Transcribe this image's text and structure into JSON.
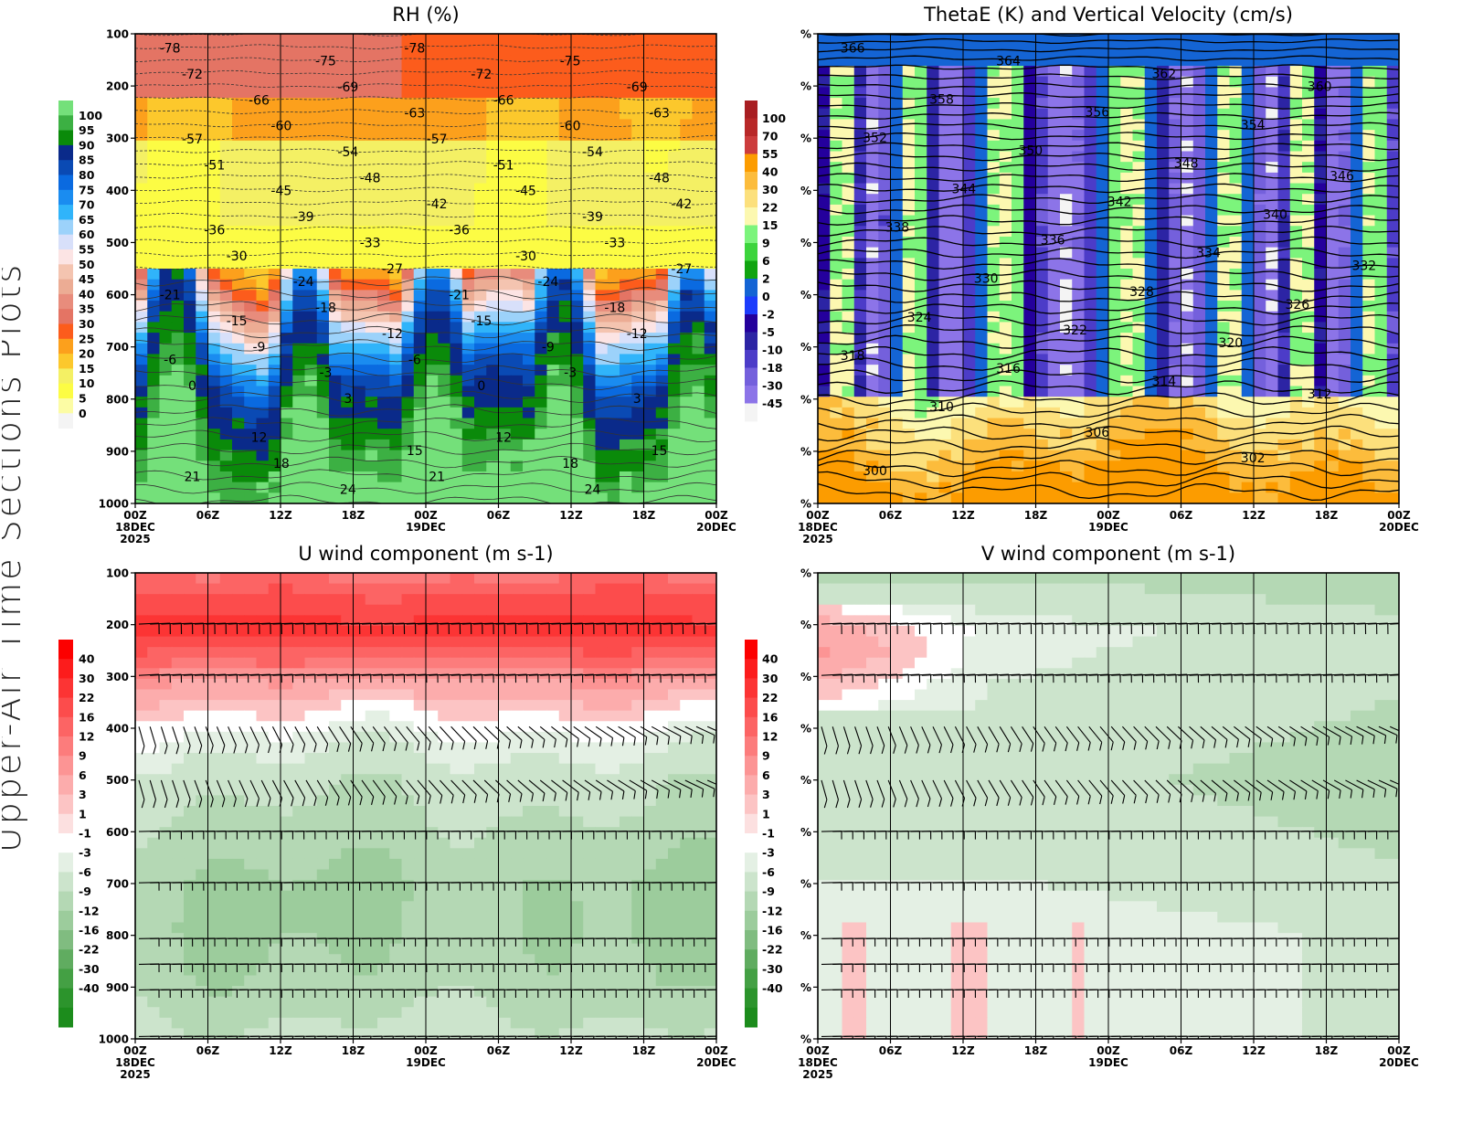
{
  "page": {
    "side_title": "Upper-Air Time Sections Plots"
  },
  "chart_data": [
    {
      "id": "rh",
      "type": "heatmap",
      "title": "RH (%)",
      "xlabel": "",
      "ylabel": "",
      "y_ticks": [
        "100",
        "200",
        "300",
        "400",
        "500",
        "600",
        "700",
        "800",
        "900",
        "1000"
      ],
      "y_range": [
        100,
        1000
      ],
      "y_reversed": true,
      "x_ticks": [
        "00Z",
        "06Z",
        "12Z",
        "18Z",
        "00Z",
        "06Z",
        "12Z",
        "18Z",
        "00Z"
      ],
      "x_date_labels": {
        "0": [
          "18DEC",
          "2025"
        ],
        "4": [
          "19DEC"
        ],
        "8": [
          "20DEC"
        ]
      },
      "colorbar": {
        "position": "left",
        "levels": [
          "100",
          "95",
          "90",
          "85",
          "80",
          "75",
          "70",
          "65",
          "60",
          "55",
          "50",
          "45",
          "40",
          "35",
          "30",
          "25",
          "20",
          "15",
          "10",
          "5",
          "0"
        ],
        "colors": [
          "#74e07a",
          "#3cb043",
          "#0a8a0a",
          "#0a2a8a",
          "#0a4ab4",
          "#0a6ae0",
          "#1a8cf0",
          "#30b4fa",
          "#9cd2fa",
          "#d8e0fa",
          "#fce4e4",
          "#f4c4b0",
          "#ecac94",
          "#e88c7c",
          "#e47464",
          "#fc5c1c",
          "#fca01c",
          "#fcc82c",
          "#f4f064",
          "#fcfc44",
          "#fcfca4",
          "#f4f4f4"
        ]
      },
      "overlay": {
        "name": "Temperature (C)",
        "contour_labels": [
          "-78",
          "-75",
          "-72",
          "-69",
          "-66",
          "-63",
          "-60",
          "-57",
          "-54",
          "-51",
          "-48",
          "-45",
          "-42",
          "-39",
          "-36",
          "-33",
          "-30",
          "-27",
          "-24",
          "-21",
          "-18",
          "-15",
          "-12",
          "-9",
          "-6",
          "-3",
          "0",
          "3",
          "12",
          "15",
          "18",
          "21",
          "24"
        ]
      },
      "band_profile": [
        {
          "p": 100,
          "rh": 27
        },
        {
          "p": 200,
          "rh": 22
        },
        {
          "p": 300,
          "rh": 17
        },
        {
          "p": 400,
          "rh": 10
        },
        {
          "p": 500,
          "rh": 7
        },
        {
          "p": 600,
          "rh": 12
        },
        {
          "p": 700,
          "rh": 45
        },
        {
          "p": 800,
          "rh": 70
        },
        {
          "p": 900,
          "rh": 88
        },
        {
          "p": 1000,
          "rh": 80
        }
      ]
    },
    {
      "id": "thetae",
      "type": "heatmap",
      "title": "ThetaE (K) and Vertical Velocity (cm/s)",
      "xlabel": "",
      "ylabel": "",
      "y_ticks": [
        "%",
        "%",
        "%",
        "%",
        "%",
        "%",
        "%",
        "%",
        "%",
        "%"
      ],
      "y_reversed": true,
      "x_ticks": [
        "00Z",
        "06Z",
        "12Z",
        "18Z",
        "00Z",
        "06Z",
        "12Z",
        "18Z",
        "00Z"
      ],
      "x_date_labels": {
        "0": [
          "18DEC",
          "2025"
        ],
        "4": [
          "19DEC"
        ],
        "8": [
          "20DEC"
        ]
      },
      "colorbar": {
        "position": "left",
        "levels": [
          "100",
          "70",
          "55",
          "40",
          "30",
          "22",
          "15",
          "9",
          "6",
          "2",
          "0",
          "-2",
          "-5",
          "-10",
          "-18",
          "-30",
          "-45"
        ],
        "colors": [
          "#a81e22",
          "#b82828",
          "#cc3c3c",
          "#fc9c00",
          "#fcbc3c",
          "#fce07c",
          "#fcf8b0",
          "#7cf47c",
          "#3cd43c",
          "#10a410",
          "#1464d4",
          "#1c3cfc",
          "#24009c",
          "#2c24a4",
          "#4c3cc8",
          "#7460dc",
          "#8c74e8",
          "#f4f4f4"
        ]
      },
      "overlay": {
        "name": "ThetaE (K)",
        "contour_labels": [
          "366",
          "364",
          "362",
          "360",
          "358",
          "356",
          "354",
          "352",
          "350",
          "348",
          "346",
          "344",
          "342",
          "340",
          "338",
          "336",
          "334",
          "332",
          "330",
          "328",
          "326",
          "324",
          "322",
          "320",
          "318",
          "316",
          "314",
          "312",
          "310",
          "306",
          "302",
          "300"
        ]
      }
    },
    {
      "id": "u_wind",
      "type": "heatmap",
      "title": "U wind component (m s-1)",
      "xlabel": "",
      "ylabel": "",
      "y_ticks": [
        "100",
        "200",
        "300",
        "400",
        "500",
        "600",
        "700",
        "800",
        "900",
        "1000"
      ],
      "y_range": [
        100,
        1000
      ],
      "y_reversed": true,
      "x_ticks": [
        "00Z",
        "06Z",
        "12Z",
        "18Z",
        "00Z",
        "06Z",
        "12Z",
        "18Z",
        "00Z"
      ],
      "x_date_labels": {
        "0": [
          "18DEC",
          "2025"
        ],
        "4": [
          "19DEC"
        ],
        "8": [
          "20DEC"
        ]
      },
      "colorbar": {
        "position": "left",
        "levels": [
          "40",
          "30",
          "22",
          "16",
          "12",
          "9",
          "6",
          "3",
          "1",
          "-1",
          "-3",
          "-6",
          "-9",
          "-12",
          "-16",
          "-22",
          "-30",
          "-40"
        ],
        "colors": [
          "#fc0000",
          "#fc1c1c",
          "#fc3434",
          "#fc4c4c",
          "#fc6464",
          "#fc7c7c",
          "#fc9494",
          "#fcacac",
          "#fcc4c4",
          "#fce0e0",
          "#ffffff",
          "#e4f0e4",
          "#cce4cc",
          "#b4d8b4",
          "#9ccc9c",
          "#80bc80",
          "#60ac60",
          "#44a044",
          "#2c942c",
          "#1c8c1c"
        ]
      },
      "overlay": {
        "name": "Wind barbs",
        "levels_hpa": [
          "200",
          "300",
          "400",
          "500",
          "600",
          "700",
          "850",
          "900",
          "950",
          "1000"
        ]
      },
      "band_profile": [
        {
          "p": 100,
          "u": 12
        },
        {
          "p": 200,
          "u": 25
        },
        {
          "p": 250,
          "u": 14
        },
        {
          "p": 300,
          "u": 6
        },
        {
          "p": 350,
          "u": 2
        },
        {
          "p": 400,
          "u": -1
        },
        {
          "p": 450,
          "u": -3
        },
        {
          "p": 500,
          "u": -5
        },
        {
          "p": 600,
          "u": -7
        },
        {
          "p": 700,
          "u": -9
        },
        {
          "p": 800,
          "u": -9
        },
        {
          "p": 900,
          "u": -8
        },
        {
          "p": 1000,
          "u": -5
        }
      ]
    },
    {
      "id": "v_wind",
      "type": "heatmap",
      "title": "V wind component (m s-1)",
      "xlabel": "",
      "ylabel": "",
      "y_ticks": [
        "%",
        "%",
        "%",
        "%",
        "%",
        "%",
        "%",
        "%",
        "%",
        "%"
      ],
      "y_reversed": true,
      "x_ticks": [
        "00Z",
        "06Z",
        "12Z",
        "18Z",
        "00Z",
        "06Z",
        "12Z",
        "18Z",
        "00Z"
      ],
      "x_date_labels": {
        "0": [
          "18DEC",
          "2025"
        ],
        "4": [
          "19DEC"
        ],
        "8": [
          "20DEC"
        ]
      },
      "colorbar": {
        "position": "left",
        "levels": [
          "40",
          "30",
          "22",
          "16",
          "12",
          "9",
          "6",
          "3",
          "1",
          "-1",
          "-3",
          "-6",
          "-9",
          "-12",
          "-16",
          "-22",
          "-30",
          "-40"
        ],
        "colors": [
          "#fc0000",
          "#fc1c1c",
          "#fc3434",
          "#fc4c4c",
          "#fc6464",
          "#fc7c7c",
          "#fc9494",
          "#fcacac",
          "#fcc4c4",
          "#fce0e0",
          "#ffffff",
          "#e4f0e4",
          "#cce4cc",
          "#b4d8b4",
          "#9ccc9c",
          "#80bc80",
          "#60ac60",
          "#44a044",
          "#2c942c",
          "#1c8c1c"
        ]
      },
      "overlay": {
        "name": "Wind barbs",
        "levels_hpa": [
          "200",
          "300",
          "400",
          "500",
          "600",
          "700",
          "850",
          "900",
          "950",
          "1000"
        ]
      },
      "band_profile": [
        {
          "p": 100,
          "v": -6
        },
        {
          "p": 200,
          "v": -2
        },
        {
          "p": 300,
          "v": -3
        },
        {
          "p": 400,
          "v": -4
        },
        {
          "p": 500,
          "v": -5
        },
        {
          "p": 600,
          "v": -4
        },
        {
          "p": 700,
          "v": -3
        },
        {
          "p": 800,
          "v": -1
        },
        {
          "p": 900,
          "v": -1
        },
        {
          "p": 1000,
          "v": -1
        }
      ]
    }
  ]
}
